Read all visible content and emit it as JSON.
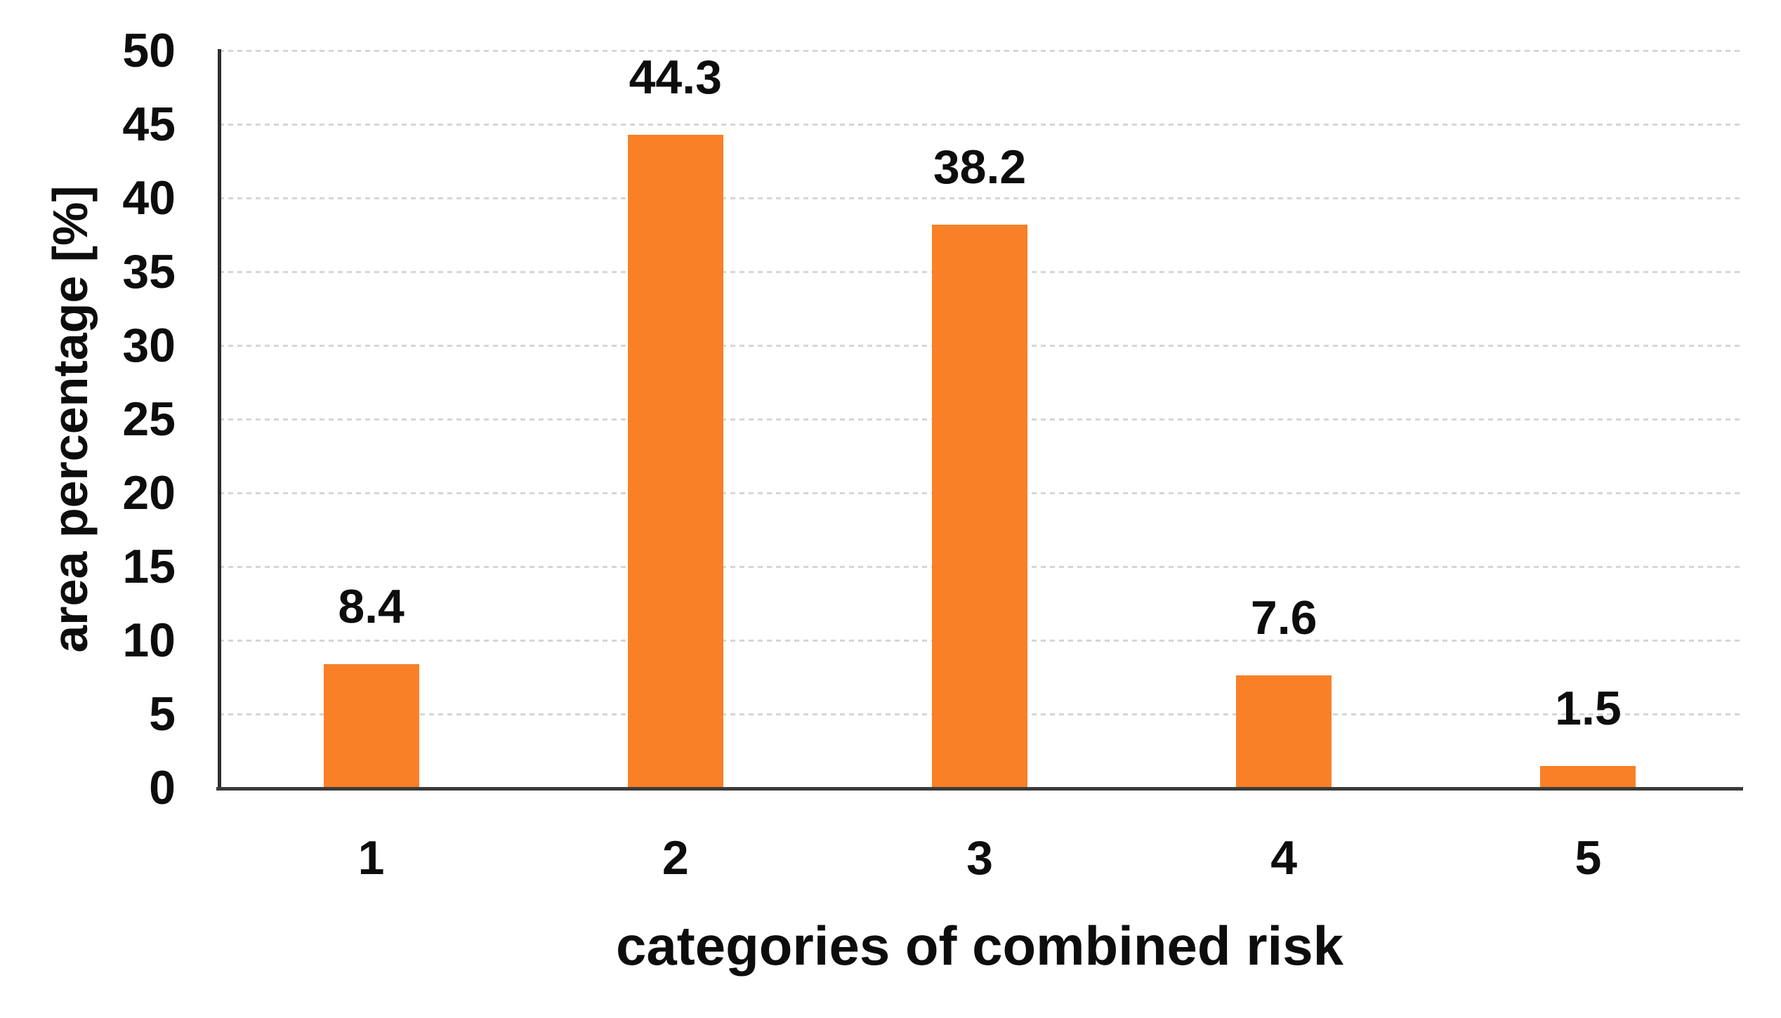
{
  "colors": {
    "bar": "#F98026",
    "axis_x": "#3A3A3A",
    "axis_y": "#2E2E2E",
    "gridline": "#D6D6D6",
    "text": "#0D0D0D",
    "background": "#FFFFFF"
  },
  "chart_data": {
    "type": "bar",
    "title": "",
    "categories": [
      "1",
      "2",
      "3",
      "4",
      "5"
    ],
    "values": [
      8.4,
      44.3,
      38.2,
      7.6,
      1.5
    ],
    "data_labels": [
      "8.4",
      "44.3",
      "38.2",
      "7.6",
      "1.5"
    ],
    "xlabel": "categories of combined risk",
    "ylabel": "area percentage [%]",
    "ylim": [
      0,
      50
    ],
    "ytick_step": 5,
    "yticks": [
      0,
      5,
      10,
      15,
      20,
      25,
      30,
      35,
      40,
      45,
      50
    ],
    "grid": "horizontal-dotted",
    "legend_position": "none",
    "bar_gap_note": "single orange series, labels outside end"
  }
}
